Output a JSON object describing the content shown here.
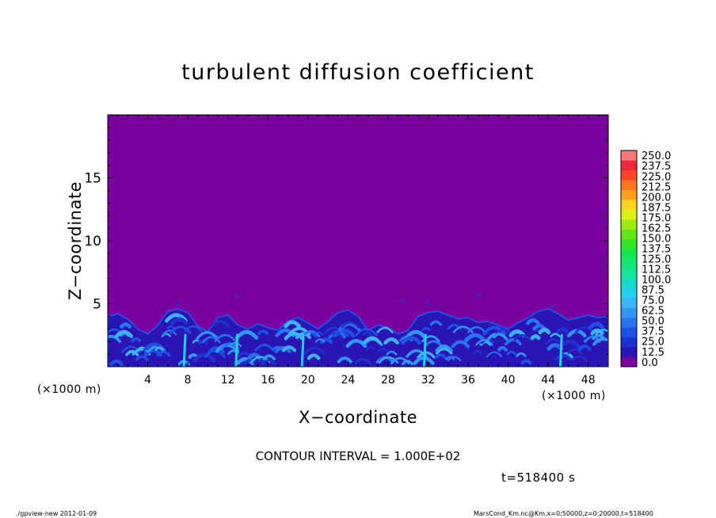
{
  "chart_data": {
    "type": "heatmap",
    "title": "turbulent diffusion coefficient",
    "xlabel": "X−coordinate",
    "ylabel": "Z−coordinate",
    "x_unit_left": "(×1000 m)",
    "x_unit_right": "(×1000 m)",
    "xlim": [
      0,
      50
    ],
    "ylim": [
      0,
      20
    ],
    "x_ticks": [
      "4",
      "8",
      "12",
      "16",
      "20",
      "24",
      "28",
      "32",
      "36",
      "40",
      "44",
      "48"
    ],
    "y_ticks": [
      "5",
      "10",
      "15"
    ],
    "colorbar": {
      "levels": [
        "0.0",
        "12.5",
        "25.0",
        "37.5",
        "50.0",
        "62.5",
        "75.0",
        "87.5",
        "100.0",
        "112.5",
        "125.0",
        "137.5",
        "150.0",
        "162.5",
        "175.0",
        "187.5",
        "200.0",
        "212.5",
        "225.0",
        "237.5",
        "250.0"
      ],
      "colors": [
        "#7b00a0",
        "#2a14b4",
        "#1e32d2",
        "#1e50e6",
        "#2873f0",
        "#3296f5",
        "#3cb4fa",
        "#1ed2f5",
        "#14dcc8",
        "#14e6a0",
        "#14e678",
        "#14e650",
        "#32e628",
        "#64e614",
        "#a0eb14",
        "#dcf014",
        "#ffd21e",
        "#ffa01e",
        "#ff781e",
        "#ff4628",
        "#f0283c",
        "#f87878"
      ]
    },
    "description_field": "max value ~100 near surface (z < 4.5 km), background 0 above",
    "boundary_layer_top_km": [
      4.0,
      4.2,
      3.8,
      3.0,
      2.6,
      3.3,
      4.4,
      4.6,
      4.3,
      3.2,
      2.8,
      3.9,
      4.1,
      3.3,
      3.0,
      3.4,
      3.1,
      2.9,
      3.6,
      3.9,
      3.5,
      3.0,
      3.6,
      4.3,
      4.5,
      4.0,
      2.9,
      3.3,
      3.1,
      2.6,
      2.9,
      4.0,
      4.3,
      4.4,
      4.1,
      3.8,
      3.9,
      3.5,
      3.6,
      3.3,
      3.0,
      3.5,
      3.9,
      4.4,
      4.6,
      4.2,
      3.7,
      3.9,
      4.1,
      3.9,
      4.0
    ]
  },
  "annotations": {
    "contour_interval": "CONTOUR INTERVAL = 1.000E+02",
    "time": "t=518400 s",
    "footer_left": "./gpview-new  2012-01-09",
    "footer_right": "MarsCond_Km.nc@Km,x=0:50000,z=0:20000,t=518400"
  }
}
